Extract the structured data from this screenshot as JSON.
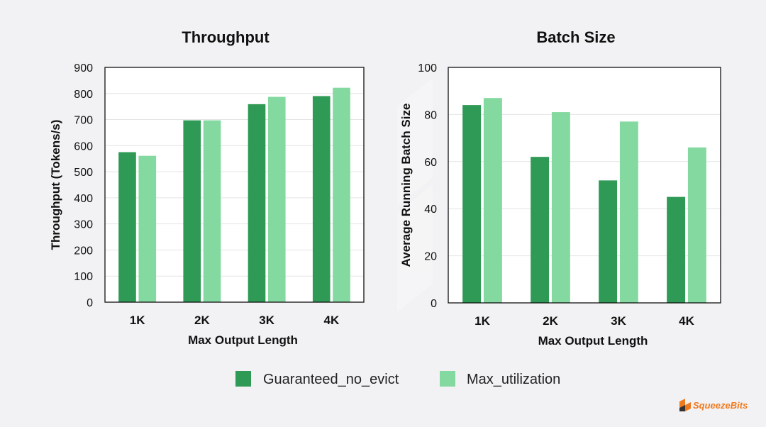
{
  "colors": {
    "background": "#f2f2f4",
    "guaranteed": "#2e9a55",
    "max_util": "#84d9a0",
    "logo": "#f07a1e"
  },
  "legend": {
    "items": [
      "Guaranteed_no_evict",
      "Max_utilization"
    ]
  },
  "logo": {
    "text": "SqueezeBits",
    "icon": "squeezebits-logo-icon"
  },
  "chart_data": [
    {
      "type": "bar",
      "title": "Throughput",
      "xlabel": "Max Output Length",
      "ylabel": "Throughput (Tokens/s)",
      "categories": [
        "1K",
        "2K",
        "3K",
        "4K"
      ],
      "ylim": [
        0,
        900
      ],
      "yticks": [
        0,
        100,
        200,
        300,
        400,
        500,
        600,
        700,
        800,
        900
      ],
      "grid": true,
      "series": [
        {
          "name": "Guaranteed_no_evict",
          "values": [
            575,
            697,
            759,
            790
          ]
        },
        {
          "name": "Max_utilization",
          "values": [
            561,
            697,
            787,
            822
          ]
        }
      ]
    },
    {
      "type": "bar",
      "title": "Batch Size",
      "xlabel": "Max Output Length",
      "ylabel": "Average Running Batch Size",
      "categories": [
        "1K",
        "2K",
        "3K",
        "4K"
      ],
      "ylim": [
        0,
        100
      ],
      "yticks": [
        0,
        20,
        40,
        60,
        80,
        100
      ],
      "grid": true,
      "series": [
        {
          "name": "Guaranteed_no_evict",
          "values": [
            84,
            62,
            52,
            45
          ]
        },
        {
          "name": "Max_utilization",
          "values": [
            87,
            81,
            77,
            66
          ]
        }
      ]
    }
  ]
}
